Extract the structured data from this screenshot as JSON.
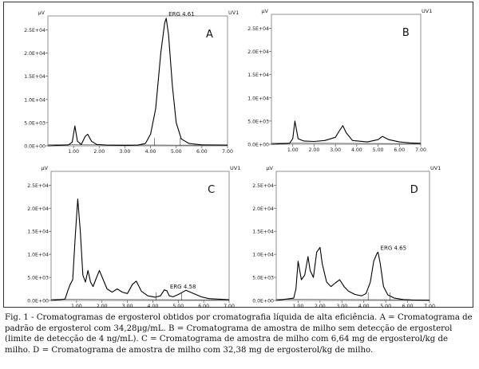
{
  "chart_data": [
    {
      "type": "line",
      "panel_label": "A",
      "unit_left": "µV",
      "unit_right": "UV1",
      "x_ticks": [
        "1.00",
        "2.00",
        "3.00",
        "4.00",
        "5.00",
        "6.00",
        "7.00"
      ],
      "y_ticks": [
        "0.0E+00",
        "5.0E+03",
        "1.0E+04",
        "1.5E+04",
        "2.0E+04",
        "2.5E+04"
      ],
      "xlim": [
        0,
        7
      ],
      "ylim": [
        0,
        28000
      ],
      "peak_label": {
        "text": "ERG 4.61",
        "x": 4.61,
        "y": 27500
      },
      "series": [
        {
          "x": [
            0,
            0.8,
            0.95,
            1.05,
            1.15,
            1.3,
            1.45,
            1.55,
            1.7,
            1.9,
            2.3,
            3.0,
            3.5,
            3.8,
            4.0,
            4.2,
            4.4,
            4.55,
            4.61,
            4.7,
            4.85,
            5.0,
            5.2,
            5.5,
            6.0,
            7.0
          ],
          "y": [
            0,
            200,
            800,
            4300,
            1000,
            300,
            2000,
            2500,
            1000,
            300,
            150,
            100,
            150,
            500,
            2500,
            8000,
            20000,
            26500,
            27500,
            24000,
            13000,
            5000,
            1500,
            500,
            200,
            150
          ]
        }
      ]
    },
    {
      "type": "line",
      "panel_label": "B",
      "unit_left": "µV",
      "unit_right": "UV1",
      "x_ticks": [
        "1.00",
        "2.00",
        "3.00",
        "4.00",
        "5.00",
        "6.00",
        "7.00"
      ],
      "y_ticks": [
        "0.0E+00",
        "5.0E+03",
        "1.0E+04",
        "1.5E+04",
        "2.0E+04",
        "2.5E+04"
      ],
      "xlim": [
        0,
        7
      ],
      "ylim": [
        0,
        28000
      ],
      "series": [
        {
          "x": [
            0,
            0.85,
            1.0,
            1.1,
            1.25,
            1.5,
            2.0,
            2.5,
            3.0,
            3.2,
            3.35,
            3.5,
            3.8,
            4.5,
            5.0,
            5.2,
            5.5,
            6.0,
            6.5,
            7.0
          ],
          "y": [
            0,
            200,
            1200,
            5000,
            1200,
            700,
            600,
            800,
            1500,
            3000,
            4000,
            2500,
            800,
            500,
            1000,
            1700,
            1000,
            500,
            300,
            200
          ]
        }
      ]
    },
    {
      "type": "line",
      "panel_label": "C",
      "unit_left": "µV",
      "unit_right": "UV1",
      "x_ticks": [
        "1.00",
        "2.00",
        "3.00",
        "4.00",
        "5.00",
        "6.00",
        "7.00"
      ],
      "y_ticks": [
        "0.0E+00",
        "5.0E+03",
        "1.0E+04",
        "1.5E+04",
        "2.0E+04",
        "2.5E+04"
      ],
      "xlim": [
        0,
        7
      ],
      "ylim": [
        0,
        28000
      ],
      "peak_label": {
        "text": "ERG 4.58",
        "x": 4.58,
        "y": 2100
      },
      "series": [
        {
          "x": [
            0,
            0.55,
            0.65,
            0.75,
            0.85,
            0.95,
            1.05,
            1.15,
            1.25,
            1.35,
            1.45,
            1.55,
            1.65,
            1.75,
            1.9,
            2.05,
            2.2,
            2.4,
            2.6,
            2.8,
            3.0,
            3.2,
            3.35,
            3.55,
            3.8,
            4.1,
            4.3,
            4.45,
            4.55,
            4.65,
            4.8,
            5.0,
            5.3,
            5.6,
            5.9,
            6.2,
            7.0
          ],
          "y": [
            0,
            300,
            2000,
            3500,
            4500,
            14000,
            22000,
            15000,
            5500,
            4000,
            6500,
            4000,
            3000,
            4500,
            6500,
            4500,
            2500,
            1800,
            2500,
            1800,
            1500,
            3500,
            4200,
            2000,
            1000,
            700,
            1000,
            2300,
            2100,
            1000,
            800,
            1300,
            2200,
            1500,
            800,
            400,
            150
          ]
        }
      ]
    },
    {
      "type": "line",
      "panel_label": "D",
      "unit_left": "µV",
      "unit_right": "UV1",
      "x_ticks": [
        "1.00",
        "2.00",
        "3.00",
        "4.00",
        "5.00",
        "6.00",
        "7.00"
      ],
      "y_ticks": [
        "0.0E+00",
        "5.0E+03",
        "1.0E+04",
        "1.5E+04",
        "2.0E+04",
        "2.5E+04"
      ],
      "xlim": [
        0,
        7
      ],
      "ylim": [
        0,
        28000
      ],
      "peak_label": {
        "text": "ERG 4.65",
        "x": 4.65,
        "y": 10500
      },
      "series": [
        {
          "x": [
            0,
            0.8,
            0.9,
            1.0,
            1.15,
            1.3,
            1.45,
            1.55,
            1.7,
            1.85,
            2.0,
            2.1,
            2.3,
            2.5,
            2.7,
            2.9,
            3.1,
            3.3,
            3.6,
            3.9,
            4.1,
            4.3,
            4.45,
            4.6,
            4.65,
            4.75,
            4.9,
            5.1,
            5.4,
            5.8,
            6.2,
            7.0
          ],
          "y": [
            0,
            500,
            2500,
            8500,
            4500,
            5500,
            9500,
            6500,
            5000,
            10500,
            11500,
            8000,
            4000,
            3000,
            3800,
            4500,
            3000,
            2000,
            1300,
            1000,
            1500,
            4000,
            8500,
            10200,
            10500,
            8000,
            3000,
            1200,
            500,
            200,
            100,
            50
          ]
        }
      ]
    }
  ],
  "caption": "Fig. 1 - Cromatogramas de ergosterol obtidos por cromatografia líquida de alta eficiência. A = Cromatograma de padrão de ergosterol com 34,28µg/mL. B = Cromatograma de amostra de milho sem detecção de ergosterol (limite de detecção de 4 ng/mL). C = Cromatograma de amostra de milho com 6,64 mg de ergosterol/kg de milho. D = Cromatograma de amostra de milho com 32,38 mg de ergosterol/kg de milho."
}
